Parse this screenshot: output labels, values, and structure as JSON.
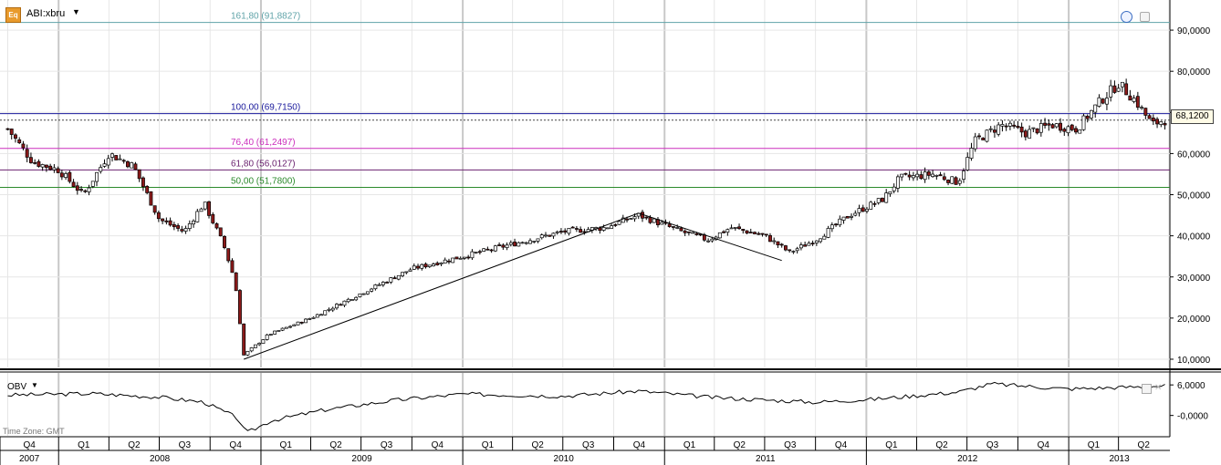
{
  "header": {
    "badge": "Eq",
    "symbol": "ABI:xbru",
    "arrow": "▼"
  },
  "current_price": "68,1200",
  "colors": {
    "up_candle": "#ffffff",
    "down_candle": "#8b1a1a",
    "fib_161": "#5fa3a8",
    "fib_100": "#1a1a9c",
    "fib_76": "#cc2ebd",
    "fib_61": "#6b2370",
    "fib_50": "#2b8a2b",
    "obv_line": "#000000"
  },
  "obv": {
    "title": "OBV",
    "arrow": "▼",
    "timezone": "Time Zone: GMT",
    "ticks": [
      "6,0000",
      "-0,0000"
    ]
  },
  "chart_data": [
    {
      "type": "candlestick",
      "title": "",
      "xlabel": "",
      "ylabel": "",
      "ylim": [
        8000,
        96000
      ],
      "y_ticks": [
        "90,0000",
        "80,0000",
        "70,0000",
        "60,0000",
        "50,0000",
        "40,0000",
        "30,0000",
        "20,0000",
        "10,0000"
      ],
      "y_tick_values": [
        90000,
        80000,
        70000,
        60000,
        50000,
        40000,
        30000,
        20000,
        10000
      ],
      "grid": true,
      "fib_levels": [
        {
          "label": "161,80 (91,8827)",
          "value": 91882.7,
          "color_key": "fib_161"
        },
        {
          "label": "100,00 (69,7150)",
          "value": 69715.0,
          "color_key": "fib_100"
        },
        {
          "label": "76,40 (61,2497)",
          "value": 61249.7,
          "color_key": "fib_76"
        },
        {
          "label": "61,80 (56,0127)",
          "value": 56012.7,
          "color_key": "fib_61"
        },
        {
          "label": "50,00 (51,7800)",
          "value": 51780.0,
          "color_key": "fib_50"
        }
      ],
      "trendline": [
        {
          "date": "2008-12-01",
          "value": 10000
        },
        {
          "date": "2010-11-15",
          "value": 45500
        },
        {
          "date": "2011-08-01",
          "value": 34000
        }
      ],
      "price_path": [
        {
          "date": "2007-10-01",
          "value": 66000
        },
        {
          "date": "2007-11-15",
          "value": 58000
        },
        {
          "date": "2008-01-01",
          "value": 56000
        },
        {
          "date": "2008-02-15",
          "value": 50000
        },
        {
          "date": "2008-04-01",
          "value": 60000
        },
        {
          "date": "2008-05-15",
          "value": 57000
        },
        {
          "date": "2008-07-01",
          "value": 44000
        },
        {
          "date": "2008-08-15",
          "value": 41000
        },
        {
          "date": "2008-09-20",
          "value": 48000
        },
        {
          "date": "2008-10-25",
          "value": 38000
        },
        {
          "date": "2008-11-15",
          "value": 29000
        },
        {
          "date": "2008-12-01",
          "value": 11000
        },
        {
          "date": "2009-01-15",
          "value": 16000
        },
        {
          "date": "2009-04-01",
          "value": 20000
        },
        {
          "date": "2009-07-01",
          "value": 26000
        },
        {
          "date": "2009-10-01",
          "value": 32000
        },
        {
          "date": "2010-01-01",
          "value": 35000
        },
        {
          "date": "2010-04-01",
          "value": 38000
        },
        {
          "date": "2010-07-01",
          "value": 41000
        },
        {
          "date": "2010-09-15",
          "value": 42000
        },
        {
          "date": "2010-11-15",
          "value": 45000
        },
        {
          "date": "2011-02-01",
          "value": 41000
        },
        {
          "date": "2011-03-20",
          "value": 39000
        },
        {
          "date": "2011-05-01",
          "value": 42000
        },
        {
          "date": "2011-07-01",
          "value": 40000
        },
        {
          "date": "2011-08-15",
          "value": 36000
        },
        {
          "date": "2011-10-01",
          "value": 39000
        },
        {
          "date": "2011-12-01",
          "value": 45000
        },
        {
          "date": "2012-02-01",
          "value": 49000
        },
        {
          "date": "2012-03-01",
          "value": 54000
        },
        {
          "date": "2012-05-01",
          "value": 55000
        },
        {
          "date": "2012-06-15",
          "value": 53000
        },
        {
          "date": "2012-07-15",
          "value": 63000
        },
        {
          "date": "2012-09-01",
          "value": 67000
        },
        {
          "date": "2012-10-15",
          "value": 65000
        },
        {
          "date": "2012-12-01",
          "value": 67000
        },
        {
          "date": "2013-01-15",
          "value": 66000
        },
        {
          "date": "2013-03-01",
          "value": 73000
        },
        {
          "date": "2013-04-01",
          "value": 77000
        },
        {
          "date": "2013-05-01",
          "value": 73000
        },
        {
          "date": "2013-06-01",
          "value": 67000
        },
        {
          "date": "2013-06-20",
          "value": 68120
        }
      ],
      "x_axis": {
        "quarters": [
          "Q4",
          "Q1",
          "Q2",
          "Q3",
          "Q4",
          "Q1",
          "Q2",
          "Q3",
          "Q4",
          "Q1",
          "Q2",
          "Q3",
          "Q4",
          "Q1",
          "Q2",
          "Q3",
          "Q4",
          "Q1",
          "Q2",
          "Q3",
          "Q4",
          "Q1",
          "Q2"
        ],
        "years": [
          "2007",
          "2008",
          "2009",
          "2010",
          "2011",
          "2012",
          "2013"
        ]
      }
    },
    {
      "type": "line",
      "title": "",
      "name": "OBV",
      "ylim": [
        -4,
        8
      ],
      "obv_path": [
        {
          "date": "2007-10-01",
          "value": 4.0
        },
        {
          "date": "2008-03-01",
          "value": 4.3
        },
        {
          "date": "2008-07-01",
          "value": 3.6
        },
        {
          "date": "2008-09-20",
          "value": 2.6
        },
        {
          "date": "2008-11-20",
          "value": -0.5
        },
        {
          "date": "2008-12-05",
          "value": -3.5
        },
        {
          "date": "2009-01-20",
          "value": -1.0
        },
        {
          "date": "2009-05-01",
          "value": 1.2
        },
        {
          "date": "2009-09-01",
          "value": 3.0
        },
        {
          "date": "2010-01-01",
          "value": 4.2
        },
        {
          "date": "2010-07-01",
          "value": 3.8
        },
        {
          "date": "2010-11-15",
          "value": 4.8
        },
        {
          "date": "2011-04-01",
          "value": 3.5
        },
        {
          "date": "2011-10-01",
          "value": 2.6
        },
        {
          "date": "2012-01-15",
          "value": 3.2
        },
        {
          "date": "2012-06-15",
          "value": 4.6
        },
        {
          "date": "2012-08-15",
          "value": 6.2
        },
        {
          "date": "2013-01-01",
          "value": 5.2
        },
        {
          "date": "2013-06-20",
          "value": 5.8
        }
      ]
    }
  ]
}
